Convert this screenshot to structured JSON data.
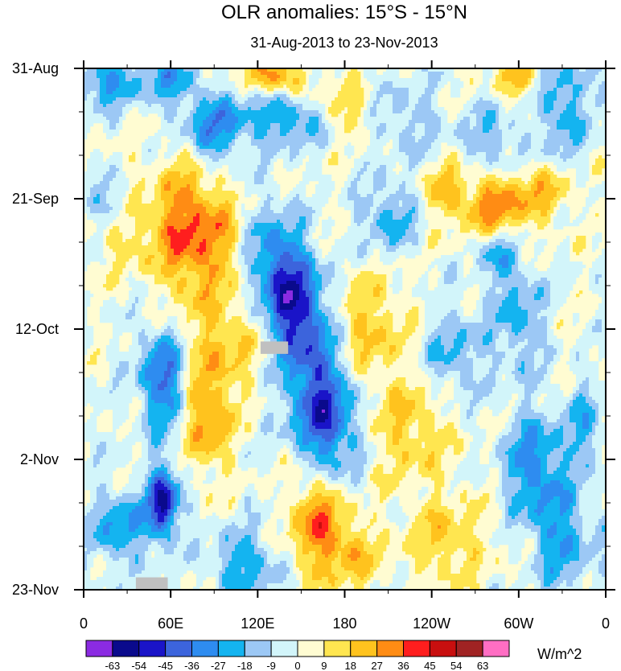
{
  "chart_data": {
    "type": "heatmap",
    "title": "OLR anomalies: 15°S - 15°N",
    "subtitle": "31-Aug-2013 to 23-Nov-2013",
    "x_ticks": [
      {
        "lon": 0,
        "label": "0"
      },
      {
        "lon": 60,
        "label": "60E"
      },
      {
        "lon": 120,
        "label": "120E"
      },
      {
        "lon": 180,
        "label": "180"
      },
      {
        "lon": 240,
        "label": "120W"
      },
      {
        "lon": 300,
        "label": "60W"
      },
      {
        "lon": 360,
        "label": "0"
      }
    ],
    "xlim": [
      0,
      360
    ],
    "y_ticks": [
      {
        "day": 0,
        "label": "31-Aug"
      },
      {
        "day": 21,
        "label": "21-Sep"
      },
      {
        "day": 42,
        "label": "12-Oct"
      },
      {
        "day": 63,
        "label": "2-Nov"
      },
      {
        "day": 84,
        "label": "23-Nov"
      }
    ],
    "ylim": [
      0,
      84
    ],
    "colorbar": {
      "levels": [
        "-63",
        "-54",
        "-45",
        "-36",
        "-27",
        "-18",
        "-9",
        "0",
        "9",
        "18",
        "27",
        "36",
        "45",
        "54",
        "63"
      ],
      "colors": [
        "#8b2be2",
        "#0a0a8c",
        "#1a14c8",
        "#3c64dc",
        "#2e8cf0",
        "#14b4f0",
        "#9cc8f5",
        "#d2f5fa",
        "#fffcd2",
        "#ffe650",
        "#ffc31e",
        "#ff8c14",
        "#ff1e1e",
        "#c80f0f",
        "#a02323",
        "#ff6ec3"
      ],
      "units": "W/m^2"
    },
    "missing_color": "#c0c0c0",
    "features": [
      {
        "lon": 15,
        "day": 2,
        "value": -30,
        "slon": 12,
        "sday": 3
      },
      {
        "lon": 58,
        "day": 2,
        "value": -25,
        "slon": 15,
        "sday": 3
      },
      {
        "lon": 132,
        "day": 1.5,
        "value": 32,
        "slon": 14,
        "sday": 2
      },
      {
        "lon": 180,
        "day": 7,
        "value": 24,
        "slon": 16,
        "sday": 3
      },
      {
        "lon": 88,
        "day": 10,
        "value": -30,
        "slon": 14,
        "sday": 4
      },
      {
        "lon": 140,
        "day": 8,
        "value": -28,
        "slon": 26,
        "sday": 3
      },
      {
        "lon": 220,
        "day": 8,
        "value": -15,
        "slon": 20,
        "sday": 4
      },
      {
        "lon": 300,
        "day": 2,
        "value": 25,
        "slon": 10,
        "sday": 2
      },
      {
        "lon": 330,
        "day": 6,
        "value": -25,
        "slon": 12,
        "sday": 6
      },
      {
        "lon": 282,
        "day": 12,
        "value": -20,
        "slon": 12,
        "sday": 4
      },
      {
        "lon": 70,
        "day": 26,
        "value": 35,
        "slon": 14,
        "sday": 8
      },
      {
        "lon": 95,
        "day": 28,
        "value": 20,
        "slon": 12,
        "sday": 6
      },
      {
        "lon": 20,
        "day": 22,
        "value": -25,
        "slon": 10,
        "sday": 3
      },
      {
        "lon": 30,
        "day": 25,
        "value": 18,
        "slon": 14,
        "sday": 5
      },
      {
        "lon": 145,
        "day": 38,
        "value": -45,
        "slon": 14,
        "sday": 6
      },
      {
        "lon": 130,
        "day": 30,
        "value": -25,
        "slon": 14,
        "sday": 6
      },
      {
        "lon": 210,
        "day": 24,
        "value": -22,
        "slon": 14,
        "sday": 4
      },
      {
        "lon": 285,
        "day": 22,
        "value": 32,
        "slon": 16,
        "sday": 4
      },
      {
        "lon": 250,
        "day": 20,
        "value": 22,
        "slon": 10,
        "sday": 3
      },
      {
        "lon": 320,
        "day": 20,
        "value": 18,
        "slon": 14,
        "sday": 3
      },
      {
        "lon": 55,
        "day": 50,
        "value": -38,
        "slon": 12,
        "sday": 6
      },
      {
        "lon": 100,
        "day": 44,
        "value": 18,
        "slon": 20,
        "sday": 5
      },
      {
        "lon": 160,
        "day": 50,
        "value": -32,
        "slon": 16,
        "sday": 8
      },
      {
        "lon": 195,
        "day": 42,
        "value": 20,
        "slon": 20,
        "sday": 6
      },
      {
        "lon": 255,
        "day": 46,
        "value": -20,
        "slon": 16,
        "sday": 5
      },
      {
        "lon": 300,
        "day": 40,
        "value": -22,
        "slon": 12,
        "sday": 6
      },
      {
        "lon": 85,
        "day": 56,
        "value": 30,
        "slon": 12,
        "sday": 6
      },
      {
        "lon": 170,
        "day": 58,
        "value": -30,
        "slon": 14,
        "sday": 6
      },
      {
        "lon": 225,
        "day": 58,
        "value": 18,
        "slon": 20,
        "sday": 6
      },
      {
        "lon": 310,
        "day": 64,
        "value": -32,
        "slon": 14,
        "sday": 6
      },
      {
        "lon": 345,
        "day": 58,
        "value": -20,
        "slon": 10,
        "sday": 5
      },
      {
        "lon": 55,
        "day": 70,
        "value": -55,
        "slon": 8,
        "sday": 4
      },
      {
        "lon": 25,
        "day": 74,
        "value": -28,
        "slon": 14,
        "sday": 4
      },
      {
        "lon": 160,
        "day": 73,
        "value": 34,
        "slon": 12,
        "sday": 6
      },
      {
        "lon": 185,
        "day": 78,
        "value": 22,
        "slon": 12,
        "sday": 4
      },
      {
        "lon": 110,
        "day": 80,
        "value": -25,
        "slon": 16,
        "sday": 4
      },
      {
        "lon": 250,
        "day": 76,
        "value": 18,
        "slon": 20,
        "sday": 5
      },
      {
        "lon": 330,
        "day": 76,
        "value": -25,
        "slon": 14,
        "sday": 6
      },
      {
        "lon": 285,
        "day": 30,
        "value": -22,
        "slon": 10,
        "sday": 3
      }
    ],
    "missing_regions": [
      {
        "lon0": 122,
        "lon1": 141,
        "day0": 44,
        "day1": 46
      },
      {
        "lon0": 36,
        "lon1": 58,
        "day0": 82,
        "day1": 84
      }
    ]
  }
}
